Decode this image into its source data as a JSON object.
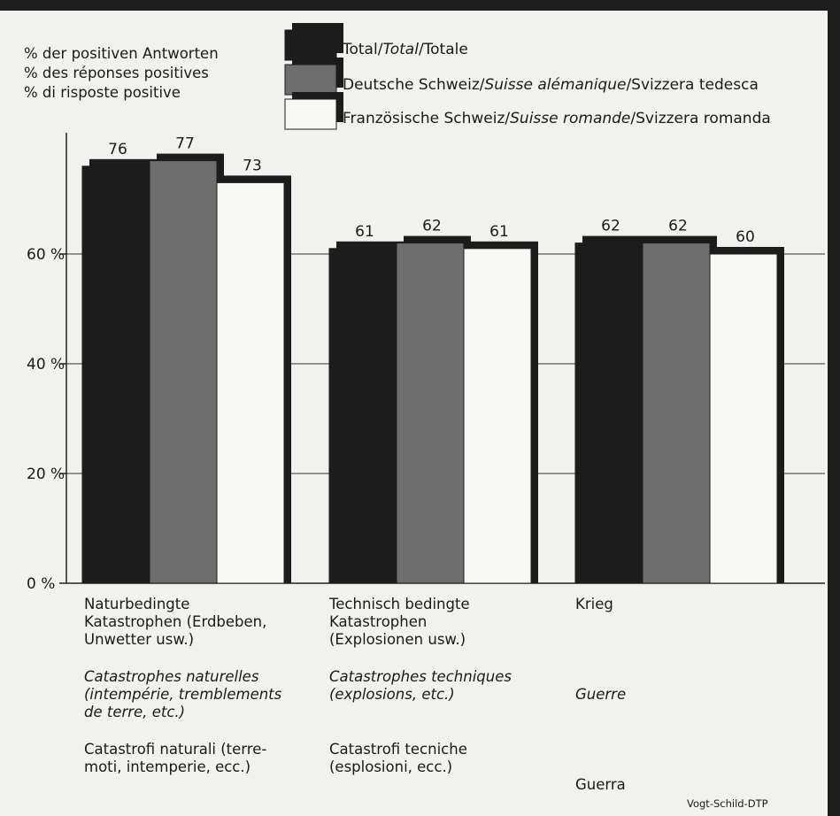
{
  "chart_data": {
    "type": "bar",
    "ylabel_lines": [
      "% der positiven Antworten",
      "% des réponses positives",
      "% di risposte positive"
    ],
    "legend": [
      {
        "parts": [
          "Total/",
          "Total",
          "/Totale"
        ],
        "color": "#1d1d1d"
      },
      {
        "parts": [
          "Deutsche Schweiz/",
          "Suisse alémanique",
          "/Svizzera tedesca"
        ],
        "color": "#6e6e6e"
      },
      {
        "parts": [
          "Französische Schweiz/",
          "Suisse romande",
          "/Svizzera romanda"
        ],
        "color": "#f7f7f4"
      }
    ],
    "categories": [
      {
        "de": [
          "Naturbedingte",
          "Katastrophen (Erdbeben,",
          "Unwetter usw.)"
        ],
        "fr": [
          "Catastrophes naturelles",
          "(intempérie, tremblements",
          "de terre, etc.)"
        ],
        "it": [
          "Catastrofi naturali (terre-",
          "moti, intemperie, ecc.)"
        ]
      },
      {
        "de": [
          "Technisch bedingte",
          "Katastrophen",
          "(Explosionen usw.)"
        ],
        "fr": [
          "Catastrophes techniques",
          "(explosions, etc.)"
        ],
        "it": [
          "Catastrofi tecniche",
          "(esplosioni, ecc.)"
        ]
      },
      {
        "de": [
          "Krieg"
        ],
        "fr": [
          "Guerre"
        ],
        "it": [
          "Guerra"
        ]
      }
    ],
    "series": [
      {
        "values": [
          76,
          61,
          62
        ]
      },
      {
        "values": [
          77,
          62,
          62
        ]
      },
      {
        "values": [
          73,
          61,
          60
        ]
      }
    ],
    "ylim": [
      0,
      80
    ],
    "yticks": [
      0,
      20,
      40,
      60
    ],
    "ytick_labels": [
      "0 %",
      "20 %",
      "40 %",
      "60 %"
    ],
    "grid": true
  },
  "credit": "Vogt-Schild-DTP"
}
